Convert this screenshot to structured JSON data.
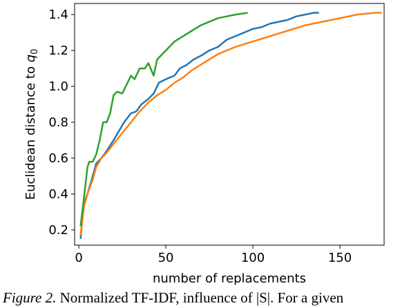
{
  "chart_data": {
    "type": "line",
    "xlabel": "number of replacements",
    "ylabel": "Euclidean distance to q",
    "ylabel_subscript": "0",
    "caption_label": "Figure 2.",
    "caption_text": "Normalized TF-IDF, influence of |S|. For a given",
    "xlim": [
      -2.4,
      175.4
    ],
    "ylim": [
      0.115,
      1.462
    ],
    "xticks": [
      0,
      50,
      100,
      150
    ],
    "yticks": [
      0.2,
      0.4,
      0.6,
      0.8,
      {
        "value": 1,
        "label": "1.0"
      },
      1.2,
      1.4
    ],
    "series": [
      {
        "color": "#1f77b4",
        "x": [
          1,
          3,
          5,
          8,
          10,
          13,
          16,
          20,
          23,
          26,
          30,
          33,
          36,
          40,
          43,
          46,
          50,
          55,
          58,
          62,
          66,
          70,
          75,
          80,
          85,
          90,
          95,
          100,
          105,
          110,
          115,
          120,
          125,
          130,
          135,
          138
        ],
        "values": [
          0.15,
          0.35,
          0.4,
          0.5,
          0.57,
          0.6,
          0.64,
          0.7,
          0.75,
          0.8,
          0.85,
          0.86,
          0.9,
          0.93,
          0.96,
          1.02,
          1.04,
          1.06,
          1.1,
          1.12,
          1.15,
          1.17,
          1.2,
          1.22,
          1.26,
          1.28,
          1.3,
          1.32,
          1.33,
          1.35,
          1.36,
          1.37,
          1.39,
          1.4,
          1.41,
          1.41
        ]
      },
      {
        "color": "#ff7f0e",
        "x": [
          1,
          3,
          5,
          8,
          10,
          13,
          16,
          20,
          25,
          30,
          35,
          40,
          45,
          50,
          55,
          60,
          65,
          70,
          75,
          80,
          85,
          90,
          100,
          110,
          120,
          130,
          140,
          150,
          160,
          170,
          174
        ],
        "values": [
          0.17,
          0.33,
          0.4,
          0.48,
          0.55,
          0.6,
          0.63,
          0.68,
          0.74,
          0.8,
          0.86,
          0.91,
          0.95,
          0.98,
          1.02,
          1.05,
          1.09,
          1.12,
          1.15,
          1.18,
          1.2,
          1.22,
          1.25,
          1.28,
          1.31,
          1.34,
          1.36,
          1.38,
          1.4,
          1.41,
          1.41
        ]
      },
      {
        "color": "#2ca02c",
        "x": [
          1,
          3,
          5,
          6,
          8,
          10,
          12,
          14,
          16,
          18,
          20,
          22,
          25,
          28,
          30,
          32,
          35,
          38,
          40,
          43,
          45,
          48,
          52,
          55,
          60,
          65,
          70,
          75,
          80,
          85,
          90,
          97
        ],
        "values": [
          0.22,
          0.38,
          0.55,
          0.58,
          0.58,
          0.62,
          0.7,
          0.8,
          0.8,
          0.85,
          0.95,
          0.97,
          0.96,
          1.02,
          1.06,
          1.04,
          1.1,
          1.1,
          1.13,
          1.06,
          1.15,
          1.18,
          1.22,
          1.25,
          1.28,
          1.31,
          1.34,
          1.36,
          1.38,
          1.39,
          1.4,
          1.41
        ]
      }
    ]
  }
}
